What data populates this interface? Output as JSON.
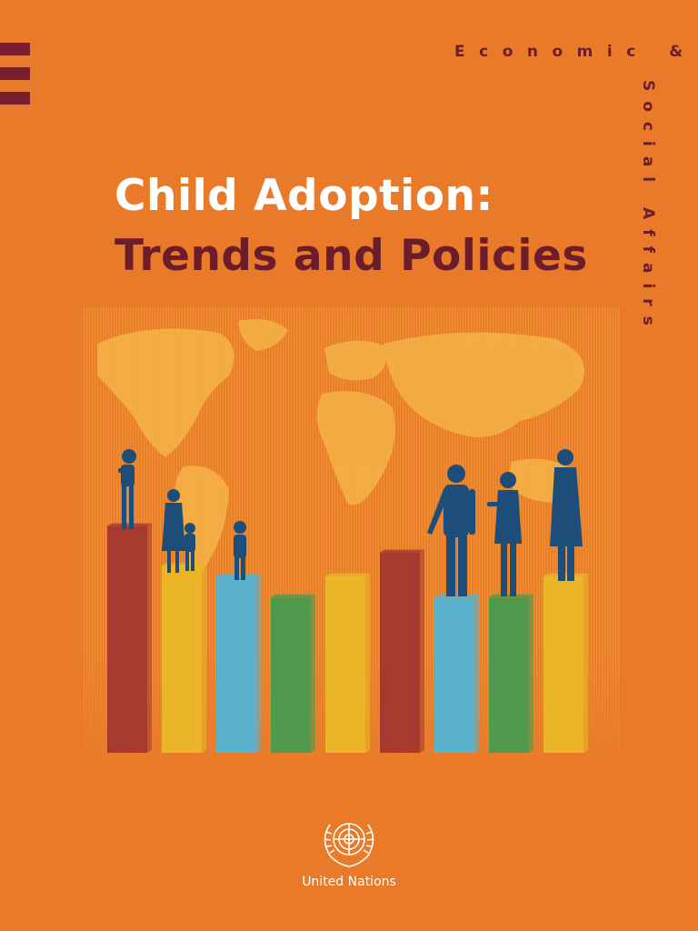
{
  "series": {
    "horizontal": "Economic &",
    "vertical": "Social Affairs"
  },
  "title": {
    "line1": "Child Adoption:",
    "line2": "Trends and Policies"
  },
  "publisher": {
    "name": "United Nations"
  },
  "colors": {
    "background": "#e97a2a",
    "accent": "#6b1d2c",
    "bar_red": "#a63a2e",
    "bar_yellow": "#eab528",
    "bar_blue": "#5ab2cc",
    "bar_green": "#4f9a4d",
    "silhouette": "#1d4d79"
  },
  "illustration": {
    "bars": [
      {
        "color": "red",
        "level": 0.86
      },
      {
        "color": "yellow",
        "level": 0.71
      },
      {
        "color": "blue",
        "level": 0.67
      },
      {
        "color": "green",
        "level": 0.59
      },
      {
        "color": "yellow",
        "level": 0.67
      },
      {
        "color": "red",
        "level": 0.76
      },
      {
        "color": "blue",
        "level": 0.59
      },
      {
        "color": "green",
        "level": 0.59
      },
      {
        "color": "yellow",
        "level": 0.67
      }
    ]
  }
}
